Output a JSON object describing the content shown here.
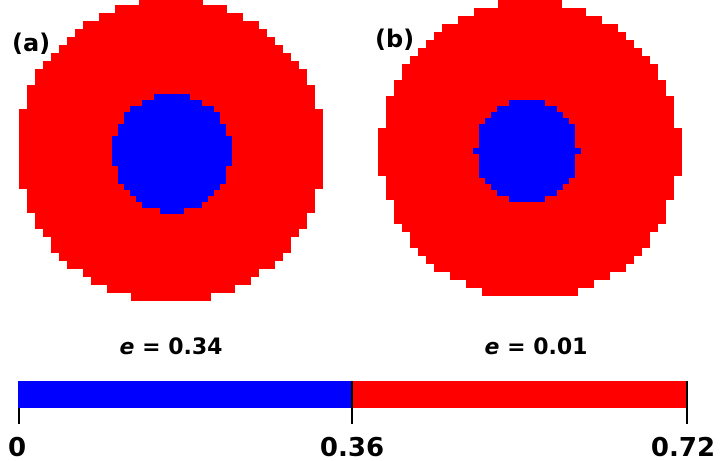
{
  "panels": [
    {
      "label": "(a)",
      "caption_var": "e",
      "caption_eq": " = ",
      "caption_value": "0.34",
      "outer_value": 0.72,
      "inner_value": 0.0
    },
    {
      "label": "(b)",
      "caption_var": "e",
      "caption_eq": " = ",
      "caption_value": "0.01",
      "outer_value": 0.72,
      "inner_value": 0.0
    }
  ],
  "colorbar": {
    "min": 0,
    "max": 0.72,
    "split": 0.36,
    "low_color": "#0000ff",
    "high_color": "#ff0000",
    "ticks": [
      "0",
      "0.36",
      "0.72"
    ]
  },
  "colors": {
    "outer_region": "#ff0000",
    "inner_region": "#0000ff"
  }
}
